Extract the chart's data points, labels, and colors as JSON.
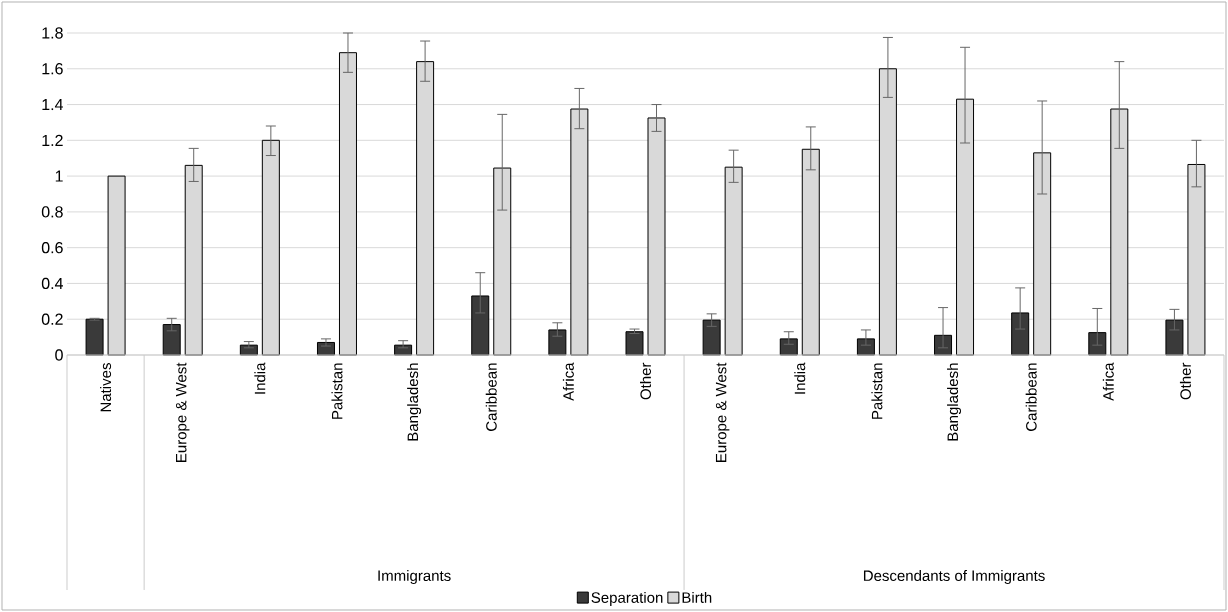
{
  "chart_data": {
    "type": "bar",
    "categories": [
      "Natives",
      "Europe & West",
      "India",
      "Pakistan",
      "Bangladesh",
      "Caribbean",
      "Africa",
      "Other",
      "Europe & West",
      "India",
      "Pakistan",
      "Bangladesh",
      "Caribbean",
      "Africa",
      "Other"
    ],
    "series": [
      {
        "name": "Separation",
        "color": "#3a3a3a",
        "values": [
          0.2,
          0.17,
          0.055,
          0.07,
          0.055,
          0.33,
          0.14,
          0.13,
          0.195,
          0.09,
          0.09,
          0.11,
          0.235,
          0.125,
          0.195
        ],
        "errors": [
          [
            0.195,
            0.205
          ],
          [
            0.135,
            0.205
          ],
          [
            0.04,
            0.075
          ],
          [
            0.05,
            0.09
          ],
          [
            0.04,
            0.08
          ],
          [
            0.235,
            0.46
          ],
          [
            0.105,
            0.18
          ],
          [
            0.12,
            0.145
          ],
          [
            0.16,
            0.23
          ],
          [
            0.06,
            0.13
          ],
          [
            0.055,
            0.14
          ],
          [
            0.04,
            0.265
          ],
          [
            0.145,
            0.375
          ],
          [
            0.055,
            0.26
          ],
          [
            0.14,
            0.255
          ]
        ]
      },
      {
        "name": "Birth",
        "color": "#d9d9d9",
        "values": [
          1.0,
          1.06,
          1.2,
          1.69,
          1.64,
          1.045,
          1.375,
          1.325,
          1.05,
          1.15,
          1.6,
          1.43,
          1.13,
          1.375,
          1.065
        ],
        "errors": [
          null,
          [
            0.97,
            1.155
          ],
          [
            1.115,
            1.28
          ],
          [
            1.58,
            1.8
          ],
          [
            1.53,
            1.755
          ],
          [
            0.81,
            1.345
          ],
          [
            1.265,
            1.49
          ],
          [
            1.25,
            1.4
          ],
          [
            0.965,
            1.145
          ],
          [
            1.035,
            1.275
          ],
          [
            1.44,
            1.775
          ],
          [
            1.185,
            1.72
          ],
          [
            0.9,
            1.42
          ],
          [
            1.155,
            1.64
          ],
          [
            0.94,
            1.2
          ]
        ]
      }
    ],
    "annotations": [
      "Immigrants",
      "Descendants of Immigrants"
    ],
    "ylim": [
      0,
      1.8
    ],
    "yticks": [
      0,
      0.2,
      0.4,
      0.6,
      0.8,
      1,
      1.2,
      1.4,
      1.6,
      1.8
    ],
    "grid": "y",
    "legend": "bottom"
  }
}
